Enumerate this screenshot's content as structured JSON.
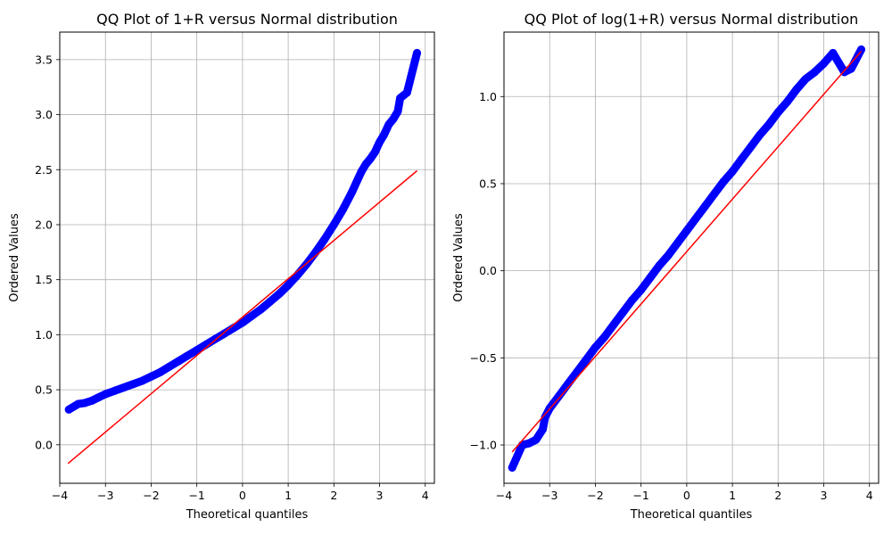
{
  "chart_data": [
    {
      "type": "scatter",
      "title": "QQ Plot of 1+R versus Normal distribution",
      "xlabel": "Theoretical quantiles",
      "ylabel": "Ordered Values",
      "xlim": [
        -4.0,
        4.2
      ],
      "ylim": [
        -0.35,
        3.75
      ],
      "xticks": [
        -4,
        -3,
        -2,
        -1,
        0,
        1,
        2,
        3,
        4
      ],
      "xtick_labels": [
        "−4",
        "−3",
        "−2",
        "−1",
        "0",
        "1",
        "2",
        "3",
        "4"
      ],
      "yticks": [
        0.0,
        0.5,
        1.0,
        1.5,
        2.0,
        2.5,
        3.0,
        3.5
      ],
      "ytick_labels": [
        "0.0",
        "0.5",
        "1.0",
        "1.5",
        "2.0",
        "2.5",
        "3.0",
        "3.5"
      ],
      "grid": true,
      "series": [
        {
          "kind": "points",
          "color": "#0000ff",
          "x": [
            -3.8,
            -3.6,
            -3.45,
            -3.3,
            -3.15,
            -3.0,
            -2.8,
            -2.6,
            -2.4,
            -2.2,
            -2.0,
            -1.8,
            -1.6,
            -1.4,
            -1.2,
            -1.0,
            -0.8,
            -0.6,
            -0.4,
            -0.2,
            0.0,
            0.2,
            0.4,
            0.6,
            0.8,
            1.0,
            1.2,
            1.4,
            1.6,
            1.8,
            2.0,
            2.2,
            2.4,
            2.5,
            2.6,
            2.7,
            2.8,
            2.9,
            3.0,
            3.1,
            3.2,
            3.3,
            3.4,
            3.45,
            3.6,
            3.82
          ],
          "y": [
            0.32,
            0.37,
            0.38,
            0.4,
            0.43,
            0.46,
            0.49,
            0.52,
            0.55,
            0.58,
            0.62,
            0.66,
            0.71,
            0.76,
            0.81,
            0.86,
            0.91,
            0.96,
            1.01,
            1.06,
            1.11,
            1.17,
            1.23,
            1.3,
            1.37,
            1.45,
            1.54,
            1.64,
            1.75,
            1.87,
            2.0,
            2.14,
            2.3,
            2.39,
            2.48,
            2.55,
            2.6,
            2.66,
            2.75,
            2.82,
            2.91,
            2.96,
            3.03,
            3.15,
            3.2,
            3.56
          ]
        },
        {
          "kind": "line",
          "color": "#ff0000",
          "x": [
            -3.82,
            3.82
          ],
          "y": [
            -0.17,
            2.49
          ]
        }
      ]
    },
    {
      "type": "scatter",
      "title": "QQ Plot of log(1+R) versus Normal distribution",
      "xlabel": "Theoretical quantiles",
      "ylabel": "Ordered Values",
      "xlim": [
        -4.0,
        4.2
      ],
      "ylim": [
        -1.22,
        1.37
      ],
      "xticks": [
        -4,
        -3,
        -2,
        -1,
        0,
        1,
        2,
        3,
        4
      ],
      "xtick_labels": [
        "−4",
        "−3",
        "−2",
        "−1",
        "0",
        "1",
        "2",
        "3",
        "4"
      ],
      "yticks": [
        -1.0,
        -0.5,
        0.0,
        0.5,
        1.0
      ],
      "ytick_labels": [
        "−1.0",
        "−0.5",
        "0.0",
        "0.5",
        "1.0"
      ],
      "grid": true,
      "series": [
        {
          "kind": "points",
          "color": "#0000ff",
          "x": [
            -3.82,
            -3.6,
            -3.45,
            -3.3,
            -3.15,
            -3.1,
            -3.0,
            -2.8,
            -2.6,
            -2.4,
            -2.2,
            -2.0,
            -1.8,
            -1.6,
            -1.4,
            -1.2,
            -1.0,
            -0.8,
            -0.6,
            -0.4,
            -0.2,
            0.0,
            0.2,
            0.4,
            0.6,
            0.8,
            1.0,
            1.2,
            1.4,
            1.6,
            1.8,
            2.0,
            2.2,
            2.4,
            2.6,
            2.8,
            3.0,
            3.2,
            3.45,
            3.6,
            3.82
          ],
          "y": [
            -1.13,
            -1.0,
            -0.99,
            -0.97,
            -0.91,
            -0.84,
            -0.79,
            -0.72,
            -0.65,
            -0.58,
            -0.51,
            -0.44,
            -0.38,
            -0.31,
            -0.24,
            -0.17,
            -0.11,
            -0.04,
            0.03,
            0.09,
            0.16,
            0.23,
            0.3,
            0.37,
            0.44,
            0.51,
            0.57,
            0.64,
            0.71,
            0.78,
            0.84,
            0.91,
            0.97,
            1.04,
            1.1,
            1.14,
            1.19,
            1.25,
            1.14,
            1.16,
            1.27
          ]
        },
        {
          "kind": "line",
          "color": "#ff0000",
          "x": [
            -3.82,
            3.82
          ],
          "y": [
            -1.04,
            1.26
          ]
        }
      ]
    }
  ]
}
